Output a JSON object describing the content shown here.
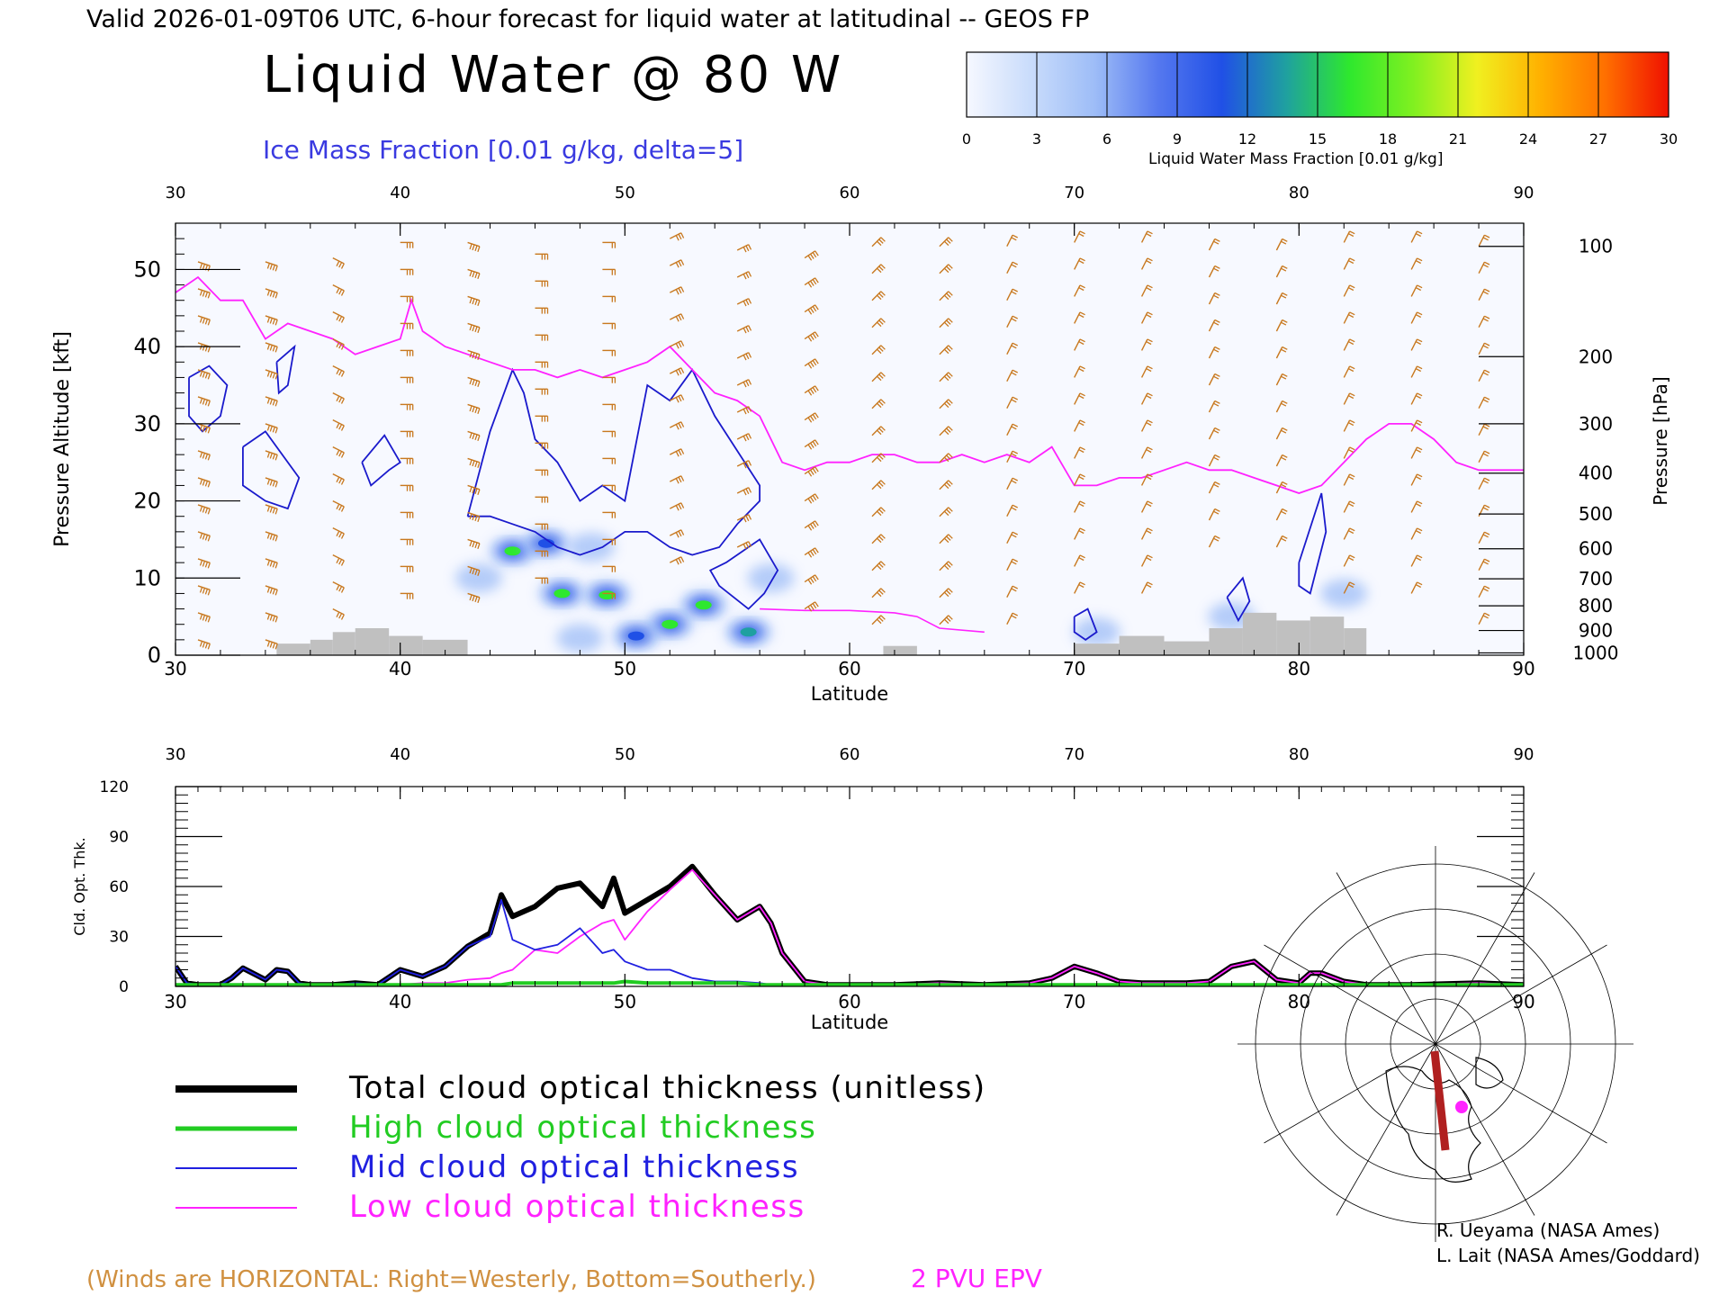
{
  "header": {
    "valid_line": "Valid 2026-01-09T06 UTC, 6-hour forecast for liquid water at latitudinal -- GEOS FP",
    "main_title": "Liquid Water @ 80 W",
    "ice_label": "Ice Mass Fraction [0.01 g/kg, delta=5]"
  },
  "colorbar": {
    "title": "Liquid Water Mass Fraction [0.01 g/kg]",
    "ticks": [
      "0",
      "3",
      "6",
      "9",
      "12",
      "15",
      "18",
      "21",
      "24",
      "27",
      "30"
    ],
    "colors": [
      "#f6f8ff",
      "#c9dcfb",
      "#9ebdf7",
      "#5578ef",
      "#2050e6",
      "#1fa0a0",
      "#2ee82e",
      "#80f020",
      "#f0f020",
      "#ffb000",
      "#ff7000",
      "#f01000"
    ]
  },
  "chart_data": [
    {
      "type": "heatmap",
      "title": "Liquid Water @ 80 W",
      "xlabel": "Latitude",
      "ylabel": "Pressure Altitude [kft]",
      "y2label": "Pressure [hPa]",
      "xlim": [
        30,
        90
      ],
      "ylim": [
        0,
        56
      ],
      "x_ticks": [
        "30",
        "40",
        "50",
        "60",
        "70",
        "80",
        "90"
      ],
      "y_ticks": [
        "0",
        "10",
        "20",
        "30",
        "40",
        "50"
      ],
      "pressure_ticks": [
        "100",
        "200",
        "300",
        "400",
        "500",
        "600",
        "700",
        "800",
        "900",
        "1000"
      ],
      "pressure_levels_kft": [
        53,
        38.7,
        30,
        23.6,
        18.3,
        13.8,
        9.9,
        6.4,
        3.2,
        0.3
      ],
      "liquid_blobs": [
        {
          "lat": 43.5,
          "alt": 10,
          "value": 6
        },
        {
          "lat": 45,
          "alt": 13.5,
          "value": 17
        },
        {
          "lat": 46.5,
          "alt": 14.5,
          "value": 12
        },
        {
          "lat": 48.5,
          "alt": 14,
          "value": 6
        },
        {
          "lat": 47.2,
          "alt": 8,
          "value": 16
        },
        {
          "lat": 49.2,
          "alt": 7.8,
          "value": 16
        },
        {
          "lat": 53.5,
          "alt": 6.5,
          "value": 17
        },
        {
          "lat": 52,
          "alt": 4,
          "value": 15
        },
        {
          "lat": 55.5,
          "alt": 3,
          "value": 13
        },
        {
          "lat": 50.5,
          "alt": 2.5,
          "value": 10
        },
        {
          "lat": 56.5,
          "alt": 10,
          "value": 6
        },
        {
          "lat": 48,
          "alt": 2.2,
          "value": 5
        },
        {
          "lat": 71,
          "alt": 3,
          "value": 5
        },
        {
          "lat": 77,
          "alt": 5,
          "value": 4
        },
        {
          "lat": 82,
          "alt": 8,
          "value": 3
        }
      ],
      "tropopause_epv_2pvu": {
        "lat": [
          30,
          31,
          32,
          33,
          34,
          35,
          36,
          37,
          38,
          39,
          40,
          40.5,
          41,
          42,
          43,
          44,
          45,
          46,
          47,
          48,
          49,
          50,
          51,
          52,
          53,
          54,
          55,
          56,
          57,
          58,
          59,
          60,
          61,
          62,
          63,
          64,
          65,
          66,
          67,
          68,
          69,
          70,
          71,
          72,
          73,
          74,
          75,
          76,
          77,
          78,
          79,
          80,
          81,
          82,
          83,
          84,
          85,
          86,
          87,
          88,
          89,
          90
        ],
        "alt": [
          47,
          49,
          46,
          46,
          41,
          43,
          42,
          41,
          39,
          40,
          41,
          46,
          42,
          40,
          39,
          38,
          37,
          37,
          36,
          37,
          36,
          37,
          38,
          40,
          37,
          34,
          33,
          31,
          25,
          24,
          25,
          25,
          26,
          26,
          25,
          25,
          26,
          25,
          26,
          25,
          27,
          22,
          22,
          23,
          23,
          24,
          25,
          24,
          24,
          23,
          22,
          21,
          22,
          25,
          28,
          30,
          30,
          28,
          25,
          24,
          24,
          24
        ]
      },
      "epv_low_contour": {
        "lat": [
          56,
          58,
          60,
          62,
          63,
          64,
          66
        ],
        "alt": [
          6,
          5.8,
          5.8,
          5.5,
          5,
          3.5,
          3
        ]
      },
      "ice_contours": [
        {
          "lat": [
            30.6,
            31.5,
            32.3,
            32,
            31.2,
            30.6,
            30.6
          ],
          "alt": [
            36,
            37.5,
            35,
            31,
            29,
            31,
            36
          ]
        },
        {
          "lat": [
            33,
            34,
            35.5,
            35,
            34,
            33,
            33
          ],
          "alt": [
            27,
            29,
            23,
            19,
            20,
            22,
            27
          ]
        },
        {
          "lat": [
            34.5,
            35.3,
            35,
            34.6,
            34.5
          ],
          "alt": [
            38,
            40,
            35,
            34,
            38
          ]
        },
        {
          "lat": [
            38.3,
            39.3,
            40,
            39.5,
            38.7,
            38.3
          ],
          "alt": [
            25,
            28.5,
            25,
            24,
            22,
            25
          ]
        },
        {
          "lat": [
            43,
            44,
            45,
            45.5,
            46,
            47,
            48,
            49,
            50,
            51,
            52,
            53,
            54,
            56,
            56,
            55,
            54.2,
            53,
            52,
            51,
            50,
            49,
            48,
            47,
            46,
            45,
            44,
            43,
            43
          ],
          "alt": [
            18,
            29,
            37,
            34,
            28,
            25,
            20,
            22,
            20,
            35,
            33,
            37,
            31,
            22,
            20,
            17,
            14,
            13,
            14,
            16,
            16,
            14,
            13,
            14,
            16,
            17,
            18,
            18,
            18
          ]
        },
        {
          "lat": [
            54.5,
            56,
            56.8,
            56.2,
            55.5,
            54.2,
            53.8,
            54.5
          ],
          "alt": [
            12,
            15,
            11,
            8,
            6,
            9,
            11,
            12
          ]
        },
        {
          "lat": [
            76.8,
            77.5,
            77.8,
            77.3,
            76.8
          ],
          "alt": [
            7.5,
            10,
            7,
            4.5,
            7.5
          ]
        },
        {
          "lat": [
            80,
            81,
            81.2,
            80.5,
            80,
            80
          ],
          "alt": [
            12,
            21,
            16,
            8,
            9,
            12
          ]
        },
        {
          "lat": [
            70,
            70.6,
            71,
            70.5,
            70,
            70
          ],
          "alt": [
            5,
            6,
            3,
            2,
            3,
            5
          ]
        }
      ],
      "topography": [
        {
          "lat0": 34.5,
          "lat1": 36,
          "alt": 1.5
        },
        {
          "lat0": 36,
          "lat1": 37,
          "alt": 2.0
        },
        {
          "lat0": 37,
          "lat1": 38,
          "alt": 3.0
        },
        {
          "lat0": 38,
          "lat1": 39.5,
          "alt": 3.5
        },
        {
          "lat0": 39.5,
          "lat1": 41,
          "alt": 2.5
        },
        {
          "lat0": 41,
          "lat1": 43,
          "alt": 2.0
        },
        {
          "lat0": 61.5,
          "lat1": 63,
          "alt": 1.2
        },
        {
          "lat0": 70,
          "lat1": 72,
          "alt": 1.5
        },
        {
          "lat0": 72,
          "lat1": 74,
          "alt": 2.5
        },
        {
          "lat0": 74,
          "lat1": 76,
          "alt": 1.8
        },
        {
          "lat0": 76,
          "lat1": 77.5,
          "alt": 3.5
        },
        {
          "lat0": 77.5,
          "lat1": 79,
          "alt": 5.5
        },
        {
          "lat0": 79,
          "lat1": 80.5,
          "alt": 4.5
        },
        {
          "lat0": 80.5,
          "lat1": 82,
          "alt": 5.0
        },
        {
          "lat0": 82,
          "lat1": 83,
          "alt": 3.5
        }
      ],
      "wind_barb_columns": [
        {
          "lat": 31,
          "u": 3,
          "v": -1,
          "alt_min": 2,
          "alt_max": 54
        },
        {
          "lat": 34,
          "u": 3,
          "v": -1,
          "alt_min": 2,
          "alt_max": 54
        },
        {
          "lat": 37,
          "u": 2,
          "v": -1,
          "alt_min": 6,
          "alt_max": 54
        },
        {
          "lat": 40,
          "u": 3,
          "v": 0,
          "alt_min": 8,
          "alt_max": 54
        },
        {
          "lat": 43,
          "u": 3,
          "v": -1,
          "alt_min": 8,
          "alt_max": 54
        },
        {
          "lat": 46,
          "u": 3,
          "v": 0,
          "alt_min": 10,
          "alt_max": 54
        },
        {
          "lat": 49,
          "u": 2,
          "v": 0,
          "alt_min": 8,
          "alt_max": 54
        },
        {
          "lat": 52,
          "u": 2,
          "v": 1,
          "alt_min": 12,
          "alt_max": 54
        },
        {
          "lat": 55,
          "u": 2,
          "v": 1,
          "alt_min": 14,
          "alt_max": 54
        },
        {
          "lat": 58,
          "u": 3,
          "v": 2,
          "alt_min": 6,
          "alt_max": 54
        },
        {
          "lat": 61,
          "u": 2,
          "v": 2,
          "alt_min": 4,
          "alt_max": 54
        },
        {
          "lat": 64,
          "u": 2,
          "v": 2,
          "alt_min": 4,
          "alt_max": 54
        },
        {
          "lat": 67,
          "u": 1,
          "v": 2,
          "alt_min": 4,
          "alt_max": 54
        },
        {
          "lat": 70,
          "u": 1,
          "v": 2,
          "alt_min": 8,
          "alt_max": 54
        },
        {
          "lat": 73,
          "u": 1,
          "v": 2,
          "alt_min": 8,
          "alt_max": 54
        },
        {
          "lat": 76,
          "u": 1,
          "v": 2,
          "alt_min": 14,
          "alt_max": 54
        },
        {
          "lat": 79,
          "u": 1,
          "v": 2,
          "alt_min": 14,
          "alt_max": 54
        },
        {
          "lat": 82,
          "u": 1,
          "v": 2,
          "alt_min": 8,
          "alt_max": 54
        },
        {
          "lat": 85,
          "u": 1,
          "v": 2,
          "alt_min": 8,
          "alt_max": 54
        },
        {
          "lat": 88,
          "u": 1,
          "v": 2,
          "alt_min": 4,
          "alt_max": 54
        }
      ]
    },
    {
      "type": "line",
      "xlabel": "Latitude",
      "ylabel": "Cld. Opt. Thk.",
      "xlim": [
        30,
        90
      ],
      "ylim": [
        0,
        120
      ],
      "x_ticks": [
        "30",
        "40",
        "50",
        "60",
        "70",
        "80",
        "90"
      ],
      "y_ticks": [
        "0",
        "30",
        "60",
        "90",
        "120"
      ],
      "x": [
        30,
        30.5,
        31,
        32,
        32.5,
        33,
        34,
        34.5,
        35,
        35.5,
        36,
        37,
        38,
        39,
        40,
        41,
        42,
        43,
        44,
        44.5,
        45,
        46,
        47,
        48,
        49,
        49.5,
        50,
        51,
        52,
        53,
        54,
        55,
        56,
        56.5,
        57,
        58,
        59,
        60,
        62,
        64,
        66,
        68,
        69,
        70,
        71,
        72,
        73,
        74,
        75,
        76,
        77,
        78,
        79,
        80,
        80.5,
        81,
        82,
        83,
        85,
        88,
        90
      ],
      "series": [
        {
          "name": "Total cloud optical thickness (unitless)",
          "color": "#000000",
          "values": [
            12,
            2,
            1,
            1,
            5,
            11,
            4,
            10,
            9,
            2,
            1,
            1,
            2,
            1,
            10,
            6,
            12,
            24,
            32,
            55,
            42,
            48,
            59,
            62,
            48,
            65,
            44,
            52,
            60,
            72,
            55,
            40,
            48,
            38,
            20,
            3,
            1,
            1,
            1,
            2,
            1,
            2,
            5,
            12,
            8,
            3,
            2,
            2,
            2,
            3,
            12,
            15,
            4,
            2,
            8,
            8,
            3,
            1,
            1,
            2,
            1
          ]
        },
        {
          "name": "High cloud optical thickness",
          "color": "#22cc22",
          "values": [
            1,
            1,
            1,
            1,
            1,
            1,
            1,
            1,
            1,
            1,
            1,
            1,
            1,
            1,
            1,
            1,
            1,
            1,
            1,
            1,
            2,
            2,
            2,
            2,
            2,
            2,
            3,
            2,
            2,
            2,
            2,
            2,
            1,
            1,
            1,
            1,
            1,
            1,
            1,
            1,
            1,
            1,
            1,
            1,
            1,
            1,
            1,
            1,
            1,
            1,
            1,
            1,
            1,
            1,
            1,
            1,
            1,
            1,
            1,
            1,
            1
          ]
        },
        {
          "name": "Mid cloud optical thickness",
          "color": "#2020e0",
          "values": [
            12,
            2,
            1,
            1,
            5,
            11,
            4,
            10,
            9,
            2,
            1,
            1,
            2,
            1,
            10,
            6,
            12,
            24,
            30,
            52,
            28,
            22,
            25,
            35,
            20,
            22,
            15,
            10,
            10,
            5,
            3,
            3,
            2,
            1,
            1,
            1,
            1,
            1,
            1,
            1,
            1,
            1,
            1,
            1,
            1,
            1,
            1,
            1,
            1,
            1,
            1,
            1,
            1,
            1,
            1,
            1,
            1,
            1,
            1,
            1,
            1
          ]
        },
        {
          "name": "Low cloud optical thickness",
          "color": "#ff22ff",
          "values": [
            1,
            1,
            1,
            1,
            1,
            1,
            1,
            1,
            1,
            1,
            1,
            1,
            1,
            1,
            1,
            2,
            2,
            4,
            5,
            8,
            10,
            22,
            20,
            30,
            38,
            40,
            28,
            45,
            58,
            70,
            55,
            40,
            48,
            38,
            20,
            3,
            1,
            1,
            1,
            2,
            1,
            2,
            5,
            12,
            8,
            3,
            2,
            2,
            2,
            3,
            12,
            15,
            4,
            2,
            8,
            8,
            3,
            1,
            1,
            2,
            1
          ]
        }
      ]
    }
  ],
  "legend": {
    "items": [
      {
        "label": "Total cloud optical thickness (unitless)",
        "color": "#000000"
      },
      {
        "label": "High cloud optical thickness",
        "color": "#22cc22"
      },
      {
        "label": "Mid cloud optical thickness",
        "color": "#2020e0"
      },
      {
        "label": "Low cloud optical thickness",
        "color": "#ff22ff"
      }
    ]
  },
  "footer": {
    "winds_note": "(Winds are HORIZONTAL: Right=Westerly, Bottom=Southerly.)",
    "pvu_label": "2 PVU EPV",
    "credit1": "R. Ueyama (NASA Ames)",
    "credit2": "L. Lait (NASA Ames/Goddard)"
  },
  "colors": {
    "barbs": "#c8781e",
    "epv": "#ff22ff",
    "ice": "#1a1acc",
    "topo": "#c0c0c0",
    "wind_note": "#d09040",
    "credit": "#000000"
  },
  "map_inset": {
    "icon": "north-america-polar-map-icon",
    "track_color": "#b02020",
    "marker_color": "#ff22ff"
  }
}
